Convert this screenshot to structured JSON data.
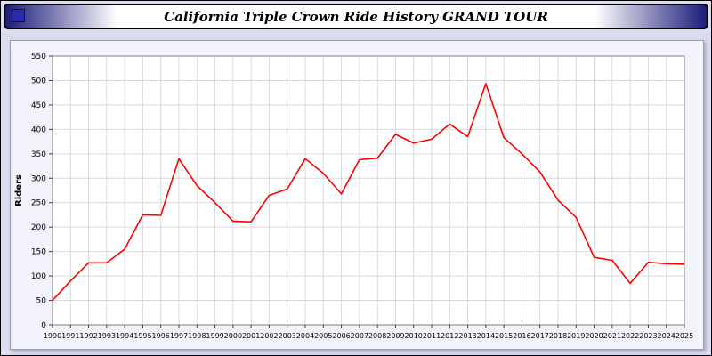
{
  "title_bar": {
    "title": "California Triple Crown Ride History GRAND TOUR"
  },
  "chart_data": {
    "type": "line",
    "title": "California Triple Crown Ride History GRAND TOUR",
    "xlabel": "",
    "ylabel": "Riders",
    "ylim": [
      0,
      550
    ],
    "ytick_step": 50,
    "grid": true,
    "legend_position": "none",
    "plot_bg": "#ffffff",
    "grid_color": "#d9d9df",
    "axis_color": "#808080",
    "tick_color": "#404040",
    "x": [
      1990,
      1991,
      1992,
      1993,
      1994,
      1995,
      1996,
      1997,
      1998,
      1999,
      2000,
      2001,
      2002,
      2003,
      2004,
      2005,
      2006,
      2007,
      2008,
      2009,
      2010,
      2011,
      2012,
      2013,
      2014,
      2015,
      2016,
      2017,
      2018,
      2019,
      2020,
      2021,
      2022,
      2023,
      2024,
      2025
    ],
    "series": [
      {
        "name": "Riders",
        "color": "#ff0000",
        "values": [
          50,
          90,
          127,
          127,
          155,
          225,
          224,
          340,
          285,
          250,
          212,
          211,
          265,
          278,
          340,
          310,
          268,
          338,
          341,
          390,
          372,
          380,
          411,
          385,
          494,
          383,
          350,
          313,
          255,
          220,
          138,
          132,
          85,
          128,
          125,
          124
        ]
      }
    ]
  }
}
